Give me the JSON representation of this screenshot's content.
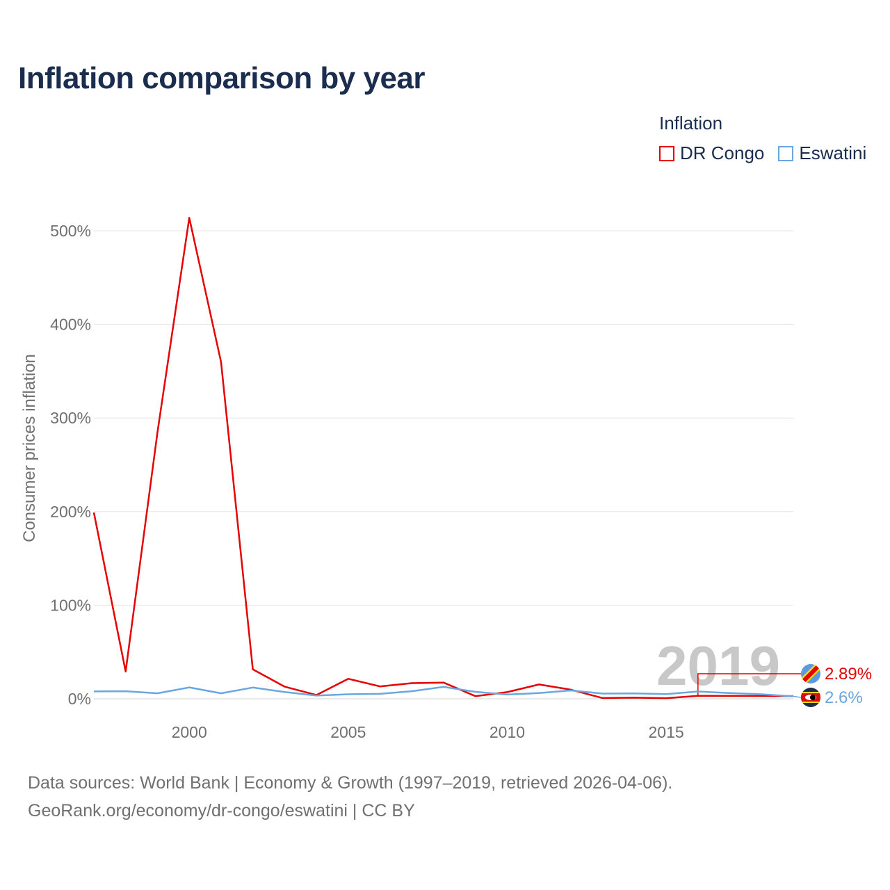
{
  "title": "Inflation comparison by year",
  "legend": {
    "title": "Inflation",
    "items": [
      {
        "name": "DR Congo",
        "color": "#e60000"
      },
      {
        "name": "Eswatini",
        "color": "#6aa7e0"
      }
    ]
  },
  "source": {
    "line1": "Data sources: World Bank | Economy & Growth (1997–2019, retrieved 2026-04-06).",
    "line2": "GeoRank.org/economy/dr-congo/eswatini | CC BY"
  },
  "chart_data": {
    "type": "line",
    "ylabel": "Consumer prices inflation",
    "xlabel": "",
    "xlim": [
      1997,
      2019
    ],
    "ylim": [
      0,
      500
    ],
    "x_ticks": [
      2000,
      2005,
      2010,
      2015
    ],
    "x_tick_labels": [
      "2000",
      "2005",
      "2010",
      "2015"
    ],
    "y_ticks": [
      0,
      100,
      200,
      300,
      400,
      500
    ],
    "y_tick_labels": [
      "0%",
      "100%",
      "200%",
      "300%",
      "400%",
      "500%"
    ],
    "grid": true,
    "current_year": "2019",
    "x": [
      1997,
      1998,
      1999,
      2000,
      2001,
      2002,
      2003,
      2004,
      2005,
      2006,
      2007,
      2008,
      2009,
      2010,
      2011,
      2012,
      2013,
      2014,
      2015,
      2016,
      2017,
      2018,
      2019
    ],
    "series": [
      {
        "name": "DR Congo",
        "color": "#e60000",
        "end_label": "2.89%",
        "flag_icon": "dr-congo-flag-icon",
        "values": [
          199,
          29.1,
          284.9,
          513.9,
          359.9,
          31.5,
          12.9,
          4.0,
          21.4,
          13.2,
          16.7,
          17.3,
          2.8,
          7.1,
          15.3,
          9.7,
          0.8,
          1.2,
          0.7,
          3.2,
          null,
          null,
          2.89
        ]
      },
      {
        "name": "Eswatini",
        "color": "#6aa7e0",
        "end_label": "2.6%",
        "flag_icon": "eswatini-flag-icon",
        "values": [
          7.9,
          8.1,
          5.9,
          12.2,
          5.9,
          12.0,
          7.3,
          3.4,
          4.8,
          5.3,
          8.1,
          12.7,
          7.4,
          4.5,
          6.1,
          8.9,
          5.6,
          5.7,
          5.0,
          7.8,
          6.2,
          4.8,
          2.6
        ]
      }
    ]
  }
}
